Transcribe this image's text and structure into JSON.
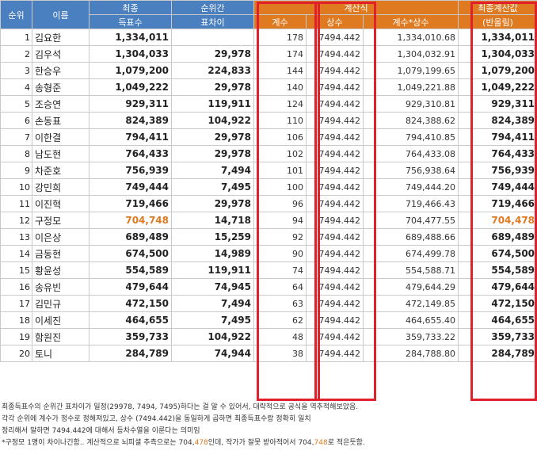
{
  "headers": {
    "rank": "순위",
    "name": "이름",
    "final_votes_1": "최종",
    "final_votes_2": "득표수",
    "gap_1": "순위간",
    "gap_2": "표차이",
    "calc_group": "계산식",
    "coef": "계수",
    "const": "상수",
    "product": "계수*상수",
    "final_calc_1": "최종계산값",
    "final_calc_2": "(반올림)"
  },
  "rows": [
    {
      "rank": "1",
      "name": "김요한",
      "votes": "1,334,011",
      "gap": "",
      "coef": "178",
      "const": "7494.442",
      "product": "1,334,010.68",
      "rounded": "1,334,011"
    },
    {
      "rank": "2",
      "name": "김우석",
      "votes": "1,304,033",
      "gap": "29,978",
      "coef": "174",
      "const": "7494.442",
      "product": "1,304,032.91",
      "rounded": "1,304,033"
    },
    {
      "rank": "3",
      "name": "한승우",
      "votes": "1,079,200",
      "gap": "224,833",
      "coef": "144",
      "const": "7494.442",
      "product": "1,079,199.65",
      "rounded": "1,079,200"
    },
    {
      "rank": "4",
      "name": "송형준",
      "votes": "1,049,222",
      "gap": "29,978",
      "coef": "140",
      "const": "7494.442",
      "product": "1,049,221.88",
      "rounded": "1,049,222"
    },
    {
      "rank": "5",
      "name": "조승연",
      "votes": "929,311",
      "gap": "119,911",
      "coef": "124",
      "const": "7494.442",
      "product": "929,310.81",
      "rounded": "929,311"
    },
    {
      "rank": "6",
      "name": "손동표",
      "votes": "824,389",
      "gap": "104,922",
      "coef": "110",
      "const": "7494.442",
      "product": "824,388.62",
      "rounded": "824,389"
    },
    {
      "rank": "7",
      "name": "이한결",
      "votes": "794,411",
      "gap": "29,978",
      "coef": "106",
      "const": "7494.442",
      "product": "794,410.85",
      "rounded": "794,411"
    },
    {
      "rank": "8",
      "name": "남도현",
      "votes": "764,433",
      "gap": "29,978",
      "coef": "102",
      "const": "7494.442",
      "product": "764,433.08",
      "rounded": "764,433"
    },
    {
      "rank": "9",
      "name": "차준호",
      "votes": "756,939",
      "gap": "7,494",
      "coef": "101",
      "const": "7494.442",
      "product": "756,938.64",
      "rounded": "756,939"
    },
    {
      "rank": "10",
      "name": "강민희",
      "votes": "749,444",
      "gap": "7,495",
      "coef": "100",
      "const": "7494.442",
      "product": "749,444.20",
      "rounded": "749,444"
    },
    {
      "rank": "11",
      "name": "이진혁",
      "votes": "719,466",
      "gap": "29,978",
      "coef": "96",
      "const": "7494.442",
      "product": "719,466.43",
      "rounded": "719,466"
    },
    {
      "rank": "12",
      "name": "구정모",
      "votes": "704,748",
      "gap": "14,718",
      "coef": "94",
      "const": "7494.442",
      "product": "704,477.55",
      "rounded": "704,478"
    },
    {
      "rank": "13",
      "name": "이은상",
      "votes": "689,489",
      "gap": "15,259",
      "coef": "92",
      "const": "7494.442",
      "product": "689,488.66",
      "rounded": "689,489"
    },
    {
      "rank": "14",
      "name": "금동현",
      "votes": "674,500",
      "gap": "14,989",
      "coef": "90",
      "const": "7494.442",
      "product": "674,499.78",
      "rounded": "674,500"
    },
    {
      "rank": "15",
      "name": "황윤성",
      "votes": "554,589",
      "gap": "119,911",
      "coef": "74",
      "const": "7494.442",
      "product": "554,588.71",
      "rounded": "554,589"
    },
    {
      "rank": "16",
      "name": "송유빈",
      "votes": "479,644",
      "gap": "74,945",
      "coef": "64",
      "const": "7494.442",
      "product": "479,644.29",
      "rounded": "479,644"
    },
    {
      "rank": "17",
      "name": "김민규",
      "votes": "472,150",
      "gap": "7,494",
      "coef": "63",
      "const": "7494.442",
      "product": "472,149.85",
      "rounded": "472,150"
    },
    {
      "rank": "18",
      "name": "이세진",
      "votes": "464,655",
      "gap": "7,495",
      "coef": "62",
      "const": "7494.442",
      "product": "464,655.40",
      "rounded": "464,655"
    },
    {
      "rank": "19",
      "name": "함원진",
      "votes": "359,733",
      "gap": "104,922",
      "coef": "48",
      "const": "7494.442",
      "product": "359,733.22",
      "rounded": "359,733"
    },
    {
      "rank": "20",
      "name": "토니",
      "votes": "284,789",
      "gap": "74,944",
      "coef": "38",
      "const": "7494.442",
      "product": "284,788.80",
      "rounded": "284,789"
    }
  ],
  "highlight_row": 11,
  "colors": {
    "header_blue": "#4a7fc0",
    "header_orange": "#e07a20",
    "red_box": "#e0202a",
    "highlight_text": "#e07a20"
  },
  "notes": {
    "line1": "최종득표수의 순위간 표차이가 일정(29978, 7494, 7495)하다는 걸 알 수 있어서, 대략적으로 공식을 역추적해보았음.",
    "line2": "각각 순위에 계수가 정수로 정해져있고, 상수 (7494.442)을 동일하게 곱하면 최종득표수랑 정확히 일치",
    "line3": "정리해서 말하면 7494.442에 대해서 등차수열을 이룬다는 의미임",
    "line4_a": "*구정모 1명이 차이나긴함.. 계산적으로 뇌피셜 추측으로는 704,",
    "line4_b": "478",
    "line4_c": "인데, 작가가 잘못 받아적어서 704,",
    "line4_d": "748",
    "line4_e": "로 적은듯함."
  }
}
